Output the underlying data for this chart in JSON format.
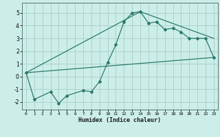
{
  "xlabel": "Humidex (Indice chaleur)",
  "bg_color": "#cceee8",
  "grid_color": "#aacccc",
  "line_color": "#2a7a6a",
  "xlim": [
    -0.5,
    23.5
  ],
  "ylim": [
    -2.6,
    5.8
  ],
  "xticks": [
    0,
    1,
    2,
    3,
    4,
    5,
    6,
    7,
    8,
    9,
    10,
    11,
    12,
    13,
    14,
    15,
    16,
    17,
    18,
    19,
    20,
    21,
    22,
    23
  ],
  "yticks": [
    -2,
    -1,
    0,
    1,
    2,
    3,
    4,
    5
  ],
  "main_x": [
    0,
    1,
    3,
    4,
    5,
    7,
    8,
    9,
    10,
    11,
    12,
    13,
    14,
    15,
    16,
    17,
    18,
    19,
    20,
    21,
    22,
    23
  ],
  "main_y": [
    0.3,
    -1.8,
    -1.2,
    -2.1,
    -1.5,
    -1.1,
    -1.2,
    -0.4,
    1.1,
    2.5,
    4.3,
    5.0,
    5.1,
    4.2,
    4.3,
    3.7,
    3.8,
    3.5,
    3.0,
    3.0,
    3.0,
    1.5
  ],
  "line2_x": [
    0,
    23
  ],
  "line2_y": [
    0.3,
    1.5
  ],
  "line3_x": [
    0,
    14,
    23
  ],
  "line3_y": [
    0.3,
    5.1,
    3.0
  ]
}
